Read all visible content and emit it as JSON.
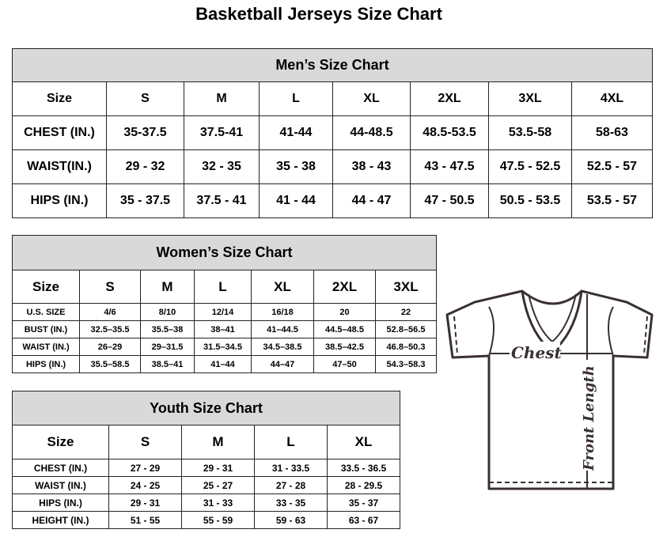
{
  "title": "Basketball Jerseys Size Chart",
  "men": {
    "caption": "Men’s Size Chart",
    "header": [
      "Size",
      "S",
      "M",
      "L",
      "XL",
      "2XL",
      "3XL",
      "4XL"
    ],
    "rows": [
      [
        "CHEST (IN.)",
        "35-37.5",
        "37.5-41",
        "41-44",
        "44-48.5",
        "48.5-53.5",
        "53.5-58",
        "58-63"
      ],
      [
        "WAIST(IN.)",
        "29 - 32",
        "32 - 35",
        "35 - 38",
        "38 - 43",
        "43 - 47.5",
        "47.5 - 52.5",
        "52.5 - 57"
      ],
      [
        "HIPS (IN.)",
        "35 - 37.5",
        "37.5 - 41",
        "41 - 44",
        "44 - 47",
        "47 - 50.5",
        "50.5 - 53.5",
        "53.5 - 57"
      ]
    ]
  },
  "women": {
    "caption": "Women’s Size Chart",
    "header": [
      "Size",
      "S",
      "M",
      "L",
      "XL",
      "2XL",
      "3XL"
    ],
    "rows": [
      [
        "U.S. SIZE",
        "4/6",
        "8/10",
        "12/14",
        "16/18",
        "20",
        "22"
      ],
      [
        "BUST (IN.)",
        "32.5–35.5",
        "35.5–38",
        "38–41",
        "41–44.5",
        "44.5–48.5",
        "52.8–56.5"
      ],
      [
        "WAIST (IN.)",
        "26–29",
        "29–31.5",
        "31.5–34.5",
        "34.5–38.5",
        "38.5–42.5",
        "46.8–50.3"
      ],
      [
        "HIPS (IN.)",
        "35.5–58.5",
        "38.5–41",
        "41–44",
        "44–47",
        "47–50",
        "54.3–58.3"
      ]
    ]
  },
  "youth": {
    "caption": "Youth Size Chart",
    "header": [
      "Size",
      "S",
      "M",
      "L",
      "XL"
    ],
    "rows": [
      [
        "CHEST (IN.)",
        "27 - 29",
        "29 - 31",
        "31 - 33.5",
        "33.5 - 36.5"
      ],
      [
        "WAIST (IN.)",
        "24 - 25",
        "25 - 27",
        "27 - 28",
        "28 - 29.5"
      ],
      [
        "HIPS (IN.)",
        "29 - 31",
        "31 - 33",
        "33 - 35",
        "35 - 37"
      ],
      [
        "HEIGHT (IN.)",
        "51 - 55",
        "55 - 59",
        "59 - 63",
        "63 - 67"
      ]
    ]
  },
  "diagram": {
    "chest_label": "Chest",
    "length_label": "Front Length"
  }
}
